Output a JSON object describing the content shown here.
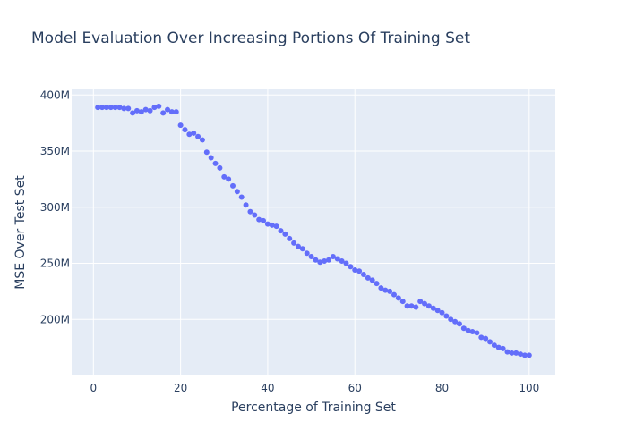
{
  "chart_data": {
    "type": "scatter",
    "title": "Model Evaluation Over Increasing Portions Of Training Set",
    "xlabel": "Percentage of Training Set",
    "ylabel": "MSE Over Test Set",
    "xlim": [
      -5,
      106
    ],
    "ylim": [
      150000000,
      405000000
    ],
    "xticks": [
      0,
      20,
      40,
      60,
      80,
      100
    ],
    "xtick_labels": [
      "0",
      "20",
      "40",
      "60",
      "80",
      "100"
    ],
    "yticks": [
      200000000,
      250000000,
      300000000,
      350000000,
      400000000
    ],
    "ytick_labels": [
      "200M",
      "250M",
      "300M",
      "350M",
      "400M"
    ],
    "grid": true,
    "legend": "none",
    "colors": {
      "marker": "#636efa",
      "plot_bg": "#e5ecf6",
      "grid": "#ffffff",
      "text": "#2a3f5f"
    },
    "series": [
      {
        "x": [
          1,
          2,
          3,
          4,
          5,
          6,
          7,
          8,
          9,
          10,
          11,
          12,
          13,
          14,
          15,
          16,
          17,
          18,
          19,
          20,
          21,
          22,
          23,
          24,
          25,
          26,
          27,
          28,
          29,
          30,
          31,
          32,
          33,
          34,
          35,
          36,
          37,
          38,
          39,
          40,
          41,
          42,
          43,
          44,
          45,
          46,
          47,
          48,
          49,
          50,
          51,
          52,
          53,
          54,
          55,
          56,
          57,
          58,
          59,
          60,
          61,
          62,
          63,
          64,
          65,
          66,
          67,
          68,
          69,
          70,
          71,
          72,
          73,
          74,
          75,
          76,
          77,
          78,
          79,
          80,
          81,
          82,
          83,
          84,
          85,
          86,
          87,
          88,
          89,
          90,
          91,
          92,
          93,
          94,
          95,
          96,
          97,
          98,
          99,
          100
        ],
        "y": [
          389000000,
          389000000,
          389000000,
          389000000,
          389000000,
          389000000,
          388000000,
          388000000,
          384000000,
          386000000,
          385000000,
          387000000,
          386000000,
          389000000,
          390000000,
          384000000,
          387000000,
          385000000,
          385000000,
          373000000,
          369000000,
          365000000,
          366000000,
          363000000,
          360000000,
          349000000,
          344000000,
          339000000,
          335000000,
          327000000,
          325000000,
          319000000,
          314000000,
          309000000,
          302000000,
          296000000,
          293000000,
          289000000,
          288000000,
          285000000,
          284000000,
          283000000,
          279000000,
          276000000,
          272000000,
          268000000,
          265000000,
          263000000,
          259000000,
          256000000,
          253000000,
          251000000,
          252000000,
          253000000,
          256000000,
          254000000,
          252000000,
          250000000,
          247000000,
          244000000,
          243000000,
          240000000,
          237000000,
          235000000,
          232000000,
          228000000,
          226000000,
          225000000,
          222000000,
          219000000,
          216000000,
          212000000,
          212000000,
          211000000,
          216000000,
          214000000,
          212000000,
          210000000,
          208000000,
          206000000,
          203000000,
          200000000,
          198000000,
          196000000,
          192000000,
          190000000,
          189000000,
          188000000,
          184000000,
          183000000,
          180000000,
          177000000,
          175000000,
          174000000,
          171000000,
          170000000,
          170000000,
          169000000,
          168000000,
          168000000
        ]
      }
    ]
  }
}
